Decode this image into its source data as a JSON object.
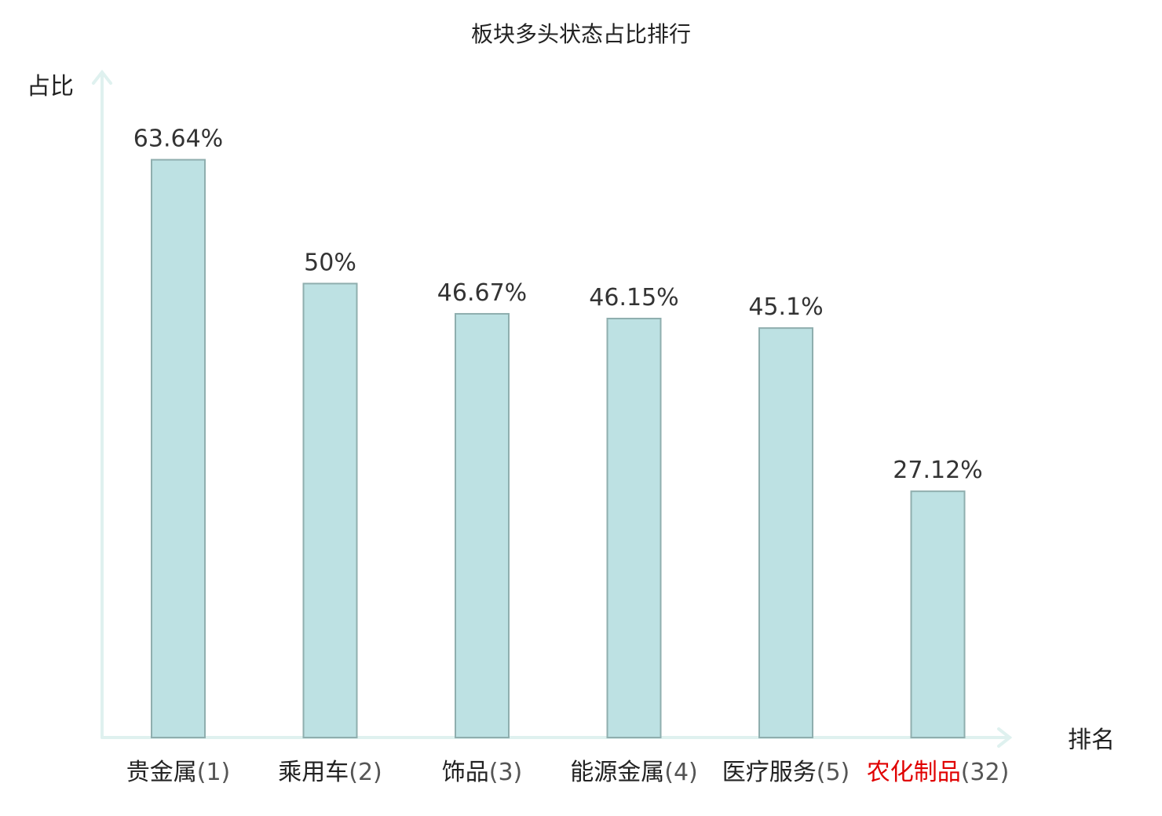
{
  "chart_data": {
    "type": "bar",
    "title": "板块多头状态占比排行",
    "ylabel": "占比",
    "xlabel": "排名",
    "categories": [
      "贵金属",
      "乘用车",
      "饰品",
      "能源金属",
      "医疗服务",
      "农化制品"
    ],
    "ranks": [
      "(1)",
      "(2)",
      "(3)",
      "(4)",
      "(5)",
      "(32)"
    ],
    "values": [
      63.64,
      50,
      46.67,
      46.15,
      45.1,
      27.12
    ],
    "value_labels": [
      "63.64%",
      "50%",
      "46.67%",
      "46.15%",
      "45.1%",
      "27.12%"
    ],
    "highlight_index": 5,
    "ylim": [
      0,
      70
    ],
    "grid": false,
    "legend": "none",
    "colors": {
      "bar_fill": "#bde1e3",
      "bar_stroke": "#8faeae",
      "axis": "#dff1ef",
      "highlight": "#e00000",
      "text": "#222222"
    }
  }
}
